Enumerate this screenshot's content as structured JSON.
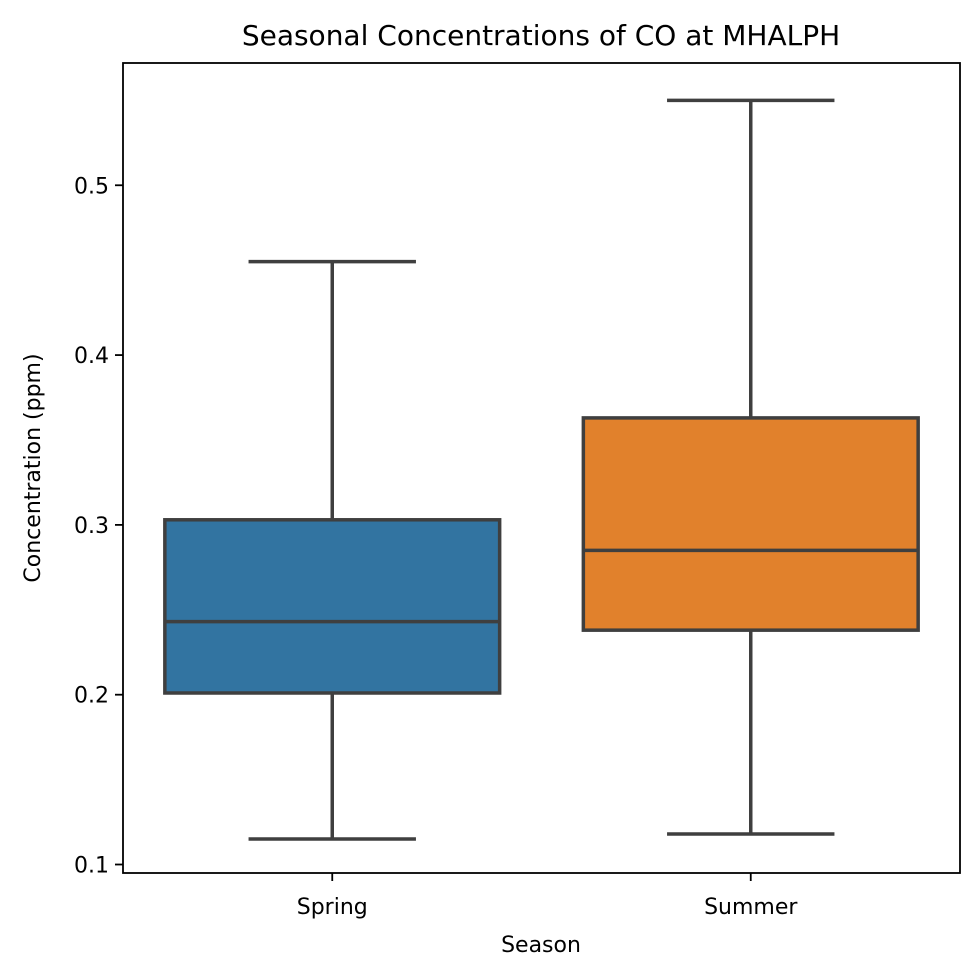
{
  "chart_data": {
    "type": "box",
    "title": "Seasonal Concentrations of CO at MHALPH",
    "xlabel": "Season",
    "ylabel": "Concentration (ppm)",
    "categories": [
      "Spring",
      "Summer"
    ],
    "boxes": [
      {
        "category": "Spring",
        "whisker_low": 0.115,
        "q1": 0.201,
        "median": 0.243,
        "q3": 0.303,
        "whisker_high": 0.455,
        "color": "#3274a1"
      },
      {
        "category": "Summer",
        "whisker_low": 0.118,
        "q1": 0.238,
        "median": 0.285,
        "q3": 0.363,
        "whisker_high": 0.55,
        "color": "#e1812c"
      }
    ],
    "yticks": [
      0.1,
      0.2,
      0.3,
      0.4,
      0.5
    ],
    "ytick_labels": [
      "0.1",
      "0.2",
      "0.3",
      "0.4",
      "0.5"
    ],
    "ylim": [
      0.095,
      0.572
    ],
    "grid": false,
    "line_color": "#3f3f3f"
  }
}
